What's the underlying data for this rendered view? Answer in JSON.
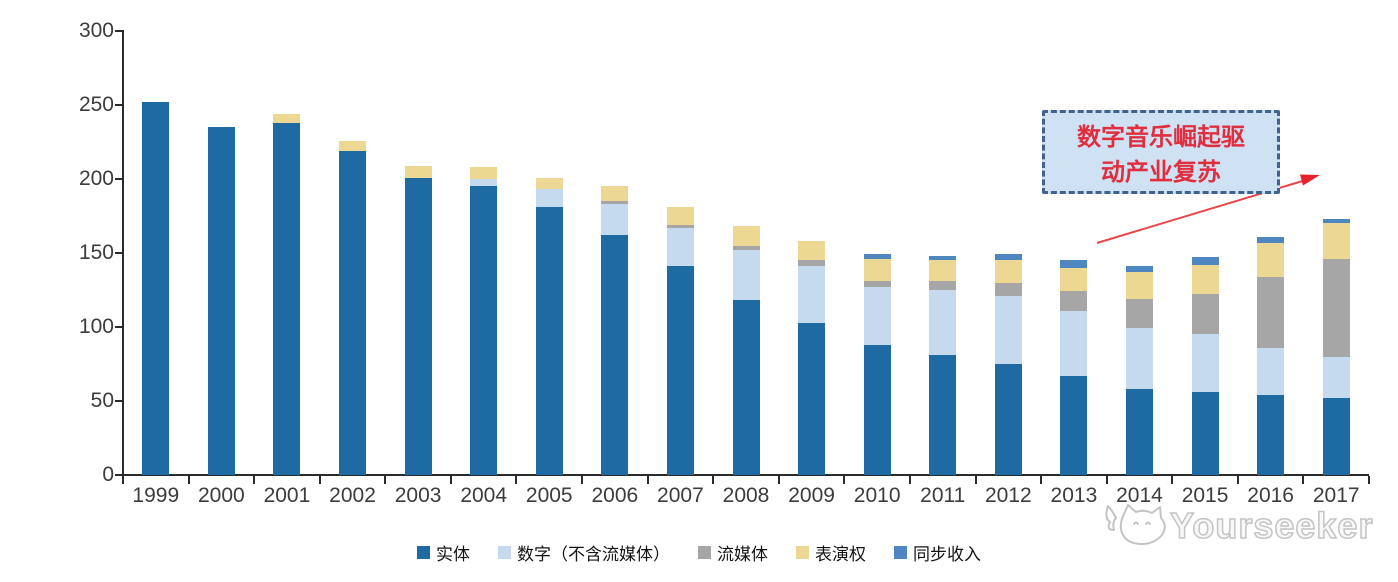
{
  "watermark": {
    "text": "Yourseeker",
    "logo": "cat-sketch-icon",
    "color": "#c4c4c4"
  },
  "annotation": {
    "line1": "数字音乐崛起驱",
    "line2": "动产业复苏",
    "text_color": "#e02e3e",
    "box_fill": "#cfe2f3",
    "box_border": "#41618e",
    "arrow_color": "#e8474e"
  },
  "chart_data": {
    "type": "bar",
    "stacked": true,
    "title": "",
    "xlabel": "",
    "ylabel": "",
    "ylim": [
      0,
      300
    ],
    "y_ticks": [
      0,
      50,
      100,
      150,
      200,
      250,
      300
    ],
    "grid": false,
    "legend_position": "bottom",
    "categories": [
      "1999",
      "2000",
      "2001",
      "2002",
      "2003",
      "2004",
      "2005",
      "2006",
      "2007",
      "2008",
      "2009",
      "2010",
      "2011",
      "2012",
      "2013",
      "2014",
      "2015",
      "2016",
      "2017"
    ],
    "series": [
      {
        "name": "实体",
        "color": "#1e6ba4",
        "values": [
          252,
          235,
          238,
          219,
          201,
          195,
          181,
          162,
          141,
          118,
          103,
          88,
          81,
          75,
          67,
          58,
          56,
          54,
          52
        ]
      },
      {
        "name": "数字（不含流媒体）",
        "color": "#c5daee",
        "values": [
          0,
          0,
          0,
          0,
          0,
          5,
          12,
          21,
          26,
          34,
          38,
          39,
          44,
          46,
          44,
          41,
          39,
          32,
          28
        ]
      },
      {
        "name": "流媒体",
        "color": "#a6a6a6",
        "values": [
          0,
          0,
          0,
          0,
          0,
          0,
          0,
          2,
          2,
          3,
          4,
          4,
          6,
          9,
          13,
          20,
          27,
          48,
          66
        ]
      },
      {
        "name": "表演权",
        "color": "#ecd893",
        "values": [
          0,
          0,
          6,
          7,
          8,
          8,
          8,
          10,
          12,
          13,
          13,
          15,
          14,
          15,
          16,
          18,
          20,
          23,
          24
        ]
      },
      {
        "name": "同步收入",
        "color": "#4e86c0",
        "values": [
          0,
          0,
          0,
          0,
          0,
          0,
          0,
          0,
          0,
          0,
          0,
          3,
          3,
          4,
          5,
          4,
          5,
          4,
          3
        ]
      }
    ]
  }
}
